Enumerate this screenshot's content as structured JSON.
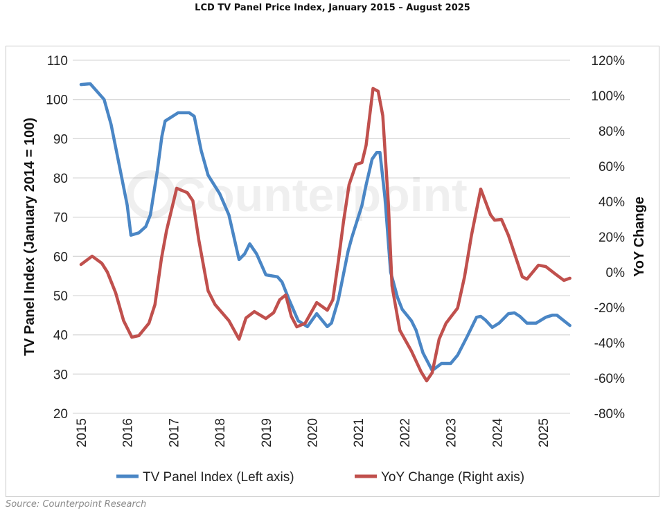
{
  "chart_data": {
    "type": "line",
    "title": "LCD TV Panel Price Index, January 2015 – August 2025",
    "source": "Source: Counterpoint Research",
    "watermark": "Counterpoint",
    "ylabel": "TV Panel Index (January 2014 = 100)",
    "y2label": "YoY Change",
    "xlim": [
      2015,
      2025.58
    ],
    "ylim": [
      20,
      110
    ],
    "y2lim": [
      -80,
      120
    ],
    "grid": true,
    "legend": "bottom",
    "x_ticks": [
      "2015",
      "2016",
      "2017",
      "2018",
      "2019",
      "2020",
      "2021",
      "2022",
      "2023",
      "2024",
      "2025"
    ],
    "y_ticks": [
      "20",
      "30",
      "40",
      "50",
      "60",
      "70",
      "80",
      "90",
      "100",
      "110"
    ],
    "y2_ticks": [
      "-80%",
      "-60%",
      "-40%",
      "-20%",
      "0%",
      "20%",
      "40%",
      "60%",
      "80%",
      "100%",
      "120%"
    ],
    "series": [
      {
        "name": "TV Panel Index (Left axis)",
        "axis": "left",
        "color": "#4a86c5",
        "x": [
          2015.0,
          2015.2,
          2015.5,
          2015.65,
          2015.8,
          2016.0,
          2016.08,
          2016.25,
          2016.4,
          2016.5,
          2016.65,
          2016.75,
          2016.82,
          2017.1,
          2017.34,
          2017.45,
          2017.6,
          2017.75,
          2018.0,
          2018.2,
          2018.42,
          2018.54,
          2018.65,
          2018.8,
          2019.0,
          2019.25,
          2019.35,
          2019.5,
          2019.7,
          2019.9,
          2020.1,
          2020.33,
          2020.42,
          2020.57,
          2020.78,
          2020.86,
          2021.08,
          2021.17,
          2021.3,
          2021.4,
          2021.47,
          2021.58,
          2021.7,
          2021.85,
          2021.95,
          2022.15,
          2022.25,
          2022.4,
          2022.6,
          2022.8,
          2023.0,
          2023.15,
          2023.35,
          2023.56,
          2023.65,
          2023.75,
          2023.9,
          2024.05,
          2024.25,
          2024.38,
          2024.5,
          2024.65,
          2024.85,
          2025.06,
          2025.2,
          2025.3,
          2025.58
        ],
        "y": [
          103.8,
          104,
          100,
          93.6,
          84.8,
          73,
          65.4,
          66,
          67.6,
          70.6,
          81.8,
          90.6,
          94.5,
          96.6,
          96.6,
          95.7,
          87,
          80.7,
          76,
          70.6,
          59.2,
          60.6,
          63.2,
          60.6,
          55.3,
          54.8,
          53.5,
          49,
          43.6,
          42.1,
          45.4,
          42.1,
          43,
          49,
          61.3,
          64.8,
          73,
          78.2,
          84.8,
          86.5,
          86.5,
          74.7,
          56,
          49.5,
          46.5,
          43.6,
          41.2,
          35.4,
          30.9,
          32.7,
          32.7,
          34.8,
          39.4,
          44.5,
          44.7,
          43.8,
          41.9,
          43,
          45.4,
          45.6,
          44.7,
          43,
          43,
          44.5,
          45,
          45,
          42.4
        ]
      },
      {
        "name": "YoY Change (Right axis)",
        "axis": "right",
        "color": "#c0504d",
        "x": [
          2015.0,
          2015.24,
          2015.45,
          2015.57,
          2015.75,
          2015.92,
          2016.1,
          2016.25,
          2016.47,
          2016.6,
          2016.74,
          2016.85,
          2017.07,
          2017.3,
          2017.42,
          2017.55,
          2017.75,
          2017.9,
          2018.2,
          2018.42,
          2018.57,
          2018.75,
          2019.0,
          2019.17,
          2019.3,
          2019.43,
          2019.55,
          2019.67,
          2019.85,
          2020.1,
          2020.33,
          2020.45,
          2020.57,
          2020.68,
          2020.8,
          2020.95,
          2021.08,
          2021.17,
          2021.32,
          2021.43,
          2021.53,
          2021.65,
          2021.73,
          2021.9,
          2022.15,
          2022.36,
          2022.48,
          2022.6,
          2022.75,
          2022.9,
          2023.15,
          2023.3,
          2023.45,
          2023.65,
          2023.86,
          2023.95,
          2024.1,
          2024.25,
          2024.55,
          2024.65,
          2024.9,
          2025.06,
          2025.25,
          2025.45,
          2025.58
        ],
        "y": [
          4.3,
          9,
          5,
          0,
          -11.8,
          -27.5,
          -36.9,
          -36,
          -29,
          -18.4,
          7.8,
          23.5,
          47.5,
          45,
          40.4,
          18,
          -10.6,
          -18.4,
          -27.5,
          -38,
          -26,
          -22.4,
          -26.3,
          -23,
          -15.7,
          -13,
          -25,
          -31,
          -29,
          -17.3,
          -21.6,
          -15.7,
          6.3,
          28.6,
          49.4,
          61,
          62,
          71.8,
          104,
          102.4,
          88.6,
          39,
          -7.8,
          -33,
          -44.7,
          -56.5,
          -61.6,
          -57,
          -38,
          -29,
          -20.4,
          -2.7,
          20.8,
          47,
          32.5,
          29.4,
          29.8,
          20.8,
          -2.7,
          -4,
          3.9,
          3.1,
          -0.8,
          -4.7,
          -3.5
        ]
      }
    ]
  }
}
